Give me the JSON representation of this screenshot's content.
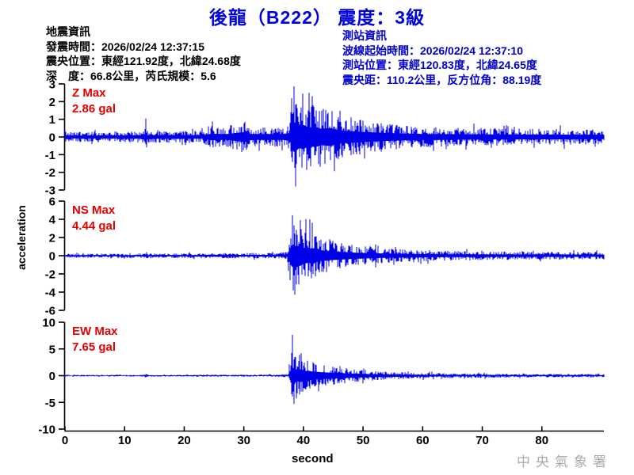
{
  "title": "後龍（B222） 震度：3級",
  "quake_info": {
    "heading": "地震資訊",
    "lines": [
      "發震時間：2026/02/24 12:37:15",
      "震央位置：東經121.92度，北緯24.68度",
      "深　度：66.8公里，芮氏規模：5.6"
    ]
  },
  "station_info": {
    "heading": "測站資訊",
    "lines": [
      "波線起始時間：2026/02/24 12:37:10",
      "測站位置：東經120.83度，北緯24.65度",
      "震央距：110.2公里，反方位角：88.19度"
    ]
  },
  "watermark": "中央氣象署",
  "colors": {
    "title_blue": "#0000DD",
    "station_info_blue": "#0000CC",
    "channel_label_red": "#E80000",
    "waveform_blue": "#0000E8",
    "axis_black": "#000000",
    "watermark_gray": "#ABABAB"
  },
  "chart_data": {
    "type": "line",
    "title": "後龍（B222） 震度：3級",
    "xlabel": "second",
    "ylabel": "acceleration",
    "unit": "gal",
    "x_ticks_s": [
      0,
      10,
      20,
      30,
      40,
      50,
      60,
      70,
      80
    ],
    "x_max_s": 90.4,
    "event_onset_s": 38,
    "grid": false,
    "legend": "none",
    "panels": [
      {
        "channel": "Z",
        "max_label": "Z Max",
        "max_value_label": "2.86 gal",
        "max_gal": 2.86,
        "ylim": [
          -3,
          3
        ],
        "yticks": [
          3,
          2,
          1,
          0,
          -1,
          -2,
          -3
        ],
        "envelope_t_gal": [
          [
            0,
            0.28
          ],
          [
            10,
            0.3
          ],
          [
            13.3,
            0.32
          ],
          [
            13.6,
            1.05
          ],
          [
            13.9,
            0.32
          ],
          [
            23.5,
            0.35
          ],
          [
            24.5,
            0.62
          ],
          [
            27,
            0.55
          ],
          [
            30.3,
            0.95
          ],
          [
            30.8,
            0.6
          ],
          [
            33,
            0.55
          ],
          [
            36.5,
            0.55
          ],
          [
            37.7,
            0.75
          ],
          [
            38.1,
            2.55
          ],
          [
            38.6,
            2.75
          ],
          [
            39.3,
            2.1
          ],
          [
            40,
            2.3
          ],
          [
            40.8,
            1.8
          ],
          [
            42,
            1.9
          ],
          [
            43,
            1.55
          ],
          [
            44.5,
            1.7
          ],
          [
            46,
            1.25
          ],
          [
            47.5,
            1.15
          ],
          [
            49,
            1.05
          ],
          [
            50,
            0.95
          ],
          [
            52,
            0.85
          ],
          [
            54,
            0.75
          ],
          [
            56,
            0.68
          ],
          [
            58,
            0.62
          ],
          [
            60,
            0.58
          ],
          [
            63,
            0.55
          ],
          [
            66,
            0.52
          ],
          [
            70,
            0.5
          ],
          [
            74,
            0.48
          ],
          [
            78,
            0.46
          ],
          [
            82,
            0.45
          ],
          [
            86,
            0.44
          ],
          [
            90.4,
            0.42
          ]
        ],
        "forced_peaks_t_gal": [
          [
            13.6,
            1.05
          ],
          [
            38.4,
            2.86
          ],
          [
            38.7,
            -2.8
          ],
          [
            39.9,
            2.45
          ]
        ]
      },
      {
        "channel": "NS",
        "max_label": "NS Max",
        "max_value_label": "4.44 gal",
        "max_gal": 4.44,
        "ylim": [
          -6,
          6
        ],
        "yticks": [
          6,
          4,
          2,
          0,
          -2,
          -4,
          -6
        ],
        "envelope_t_gal": [
          [
            0,
            0.22
          ],
          [
            10,
            0.24
          ],
          [
            13.3,
            0.25
          ],
          [
            13.6,
            0.5
          ],
          [
            13.9,
            0.25
          ],
          [
            24,
            0.28
          ],
          [
            30,
            0.3
          ],
          [
            36,
            0.3
          ],
          [
            37.3,
            0.45
          ],
          [
            37.8,
            3.2
          ],
          [
            38.2,
            4.2
          ],
          [
            38.8,
            3.4
          ],
          [
            39.4,
            3.8
          ],
          [
            40,
            3.0
          ],
          [
            40.8,
            2.6
          ],
          [
            41.6,
            2.8
          ],
          [
            42.5,
            2.2
          ],
          [
            43.5,
            1.85
          ],
          [
            44.5,
            1.6
          ],
          [
            46,
            1.45
          ],
          [
            47.5,
            1.25
          ],
          [
            49,
            1.1
          ],
          [
            50.5,
            1.0
          ],
          [
            52,
            0.9
          ],
          [
            54,
            0.8
          ],
          [
            56,
            0.72
          ],
          [
            58,
            0.65
          ],
          [
            60,
            0.6
          ],
          [
            63,
            0.55
          ],
          [
            66,
            0.5
          ],
          [
            70,
            0.48
          ],
          [
            75,
            0.45
          ],
          [
            80,
            0.43
          ],
          [
            85,
            0.42
          ],
          [
            90.4,
            0.4
          ]
        ],
        "forced_peaks_t_gal": [
          [
            38.15,
            4.44
          ],
          [
            38.5,
            -4.3
          ],
          [
            39.5,
            3.9
          ]
        ]
      },
      {
        "channel": "EW",
        "max_label": "EW Max",
        "max_value_label": "7.65 gal",
        "max_gal": 7.65,
        "ylim": [
          -10,
          10
        ],
        "yticks": [
          10,
          5,
          0,
          -5,
          -10
        ],
        "envelope_t_gal": [
          [
            0,
            0.16
          ],
          [
            10,
            0.17
          ],
          [
            13.3,
            0.18
          ],
          [
            13.6,
            0.38
          ],
          [
            13.9,
            0.18
          ],
          [
            24,
            0.2
          ],
          [
            30,
            0.21
          ],
          [
            36,
            0.22
          ],
          [
            37.5,
            0.35
          ],
          [
            38,
            5.2
          ],
          [
            38.4,
            4.6
          ],
          [
            39,
            3.6
          ],
          [
            39.6,
            4.0
          ],
          [
            40.3,
            3.0
          ],
          [
            41.2,
            2.7
          ],
          [
            42.2,
            2.4
          ],
          [
            43.2,
            2.1
          ],
          [
            44.5,
            1.9
          ],
          [
            46,
            1.65
          ],
          [
            47.5,
            1.4
          ],
          [
            49,
            1.2
          ],
          [
            50.5,
            1.05
          ],
          [
            52,
            0.9
          ],
          [
            54,
            0.78
          ],
          [
            56,
            0.68
          ],
          [
            58,
            0.6
          ],
          [
            60,
            0.55
          ],
          [
            63,
            0.48
          ],
          [
            66,
            0.44
          ],
          [
            70,
            0.4
          ],
          [
            75,
            0.37
          ],
          [
            80,
            0.35
          ],
          [
            85,
            0.33
          ],
          [
            90.4,
            0.32
          ]
        ],
        "forced_peaks_t_gal": [
          [
            38.2,
            7.65
          ],
          [
            38.45,
            -5.3
          ],
          [
            39.6,
            4.2
          ]
        ]
      }
    ]
  }
}
